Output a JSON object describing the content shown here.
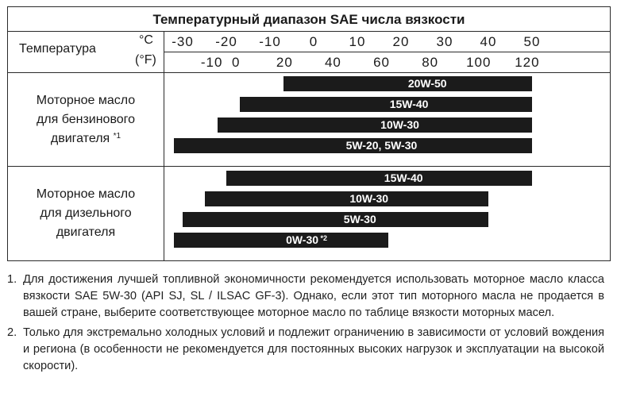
{
  "title": "Температурный диапазон SAE числа вязкости",
  "temperature_label": "Температура",
  "unit_c": "°C",
  "unit_f": "(°F)",
  "ticks_c": [
    "-30",
    "-20",
    "-10",
    "0",
    "10",
    "20",
    "30",
    "40",
    "50"
  ],
  "ticks_f": [
    "-10",
    "0",
    "20",
    "40",
    "60",
    "80",
    "100",
    "120"
  ],
  "groups": [
    {
      "label_lines": [
        "Моторное масло",
        "для бензинового",
        "двигателя"
      ],
      "footnote_mark": "*1",
      "bars": [
        {
          "label": "20W-50",
          "range_c": [
            -7,
            50
          ]
        },
        {
          "label": "15W-40",
          "range_c": [
            -17,
            50
          ]
        },
        {
          "label": "10W-30",
          "range_c": [
            -22,
            50
          ]
        },
        {
          "label": "5W-20, 5W-30",
          "range_c": [
            -32,
            50
          ]
        }
      ]
    },
    {
      "label_lines": [
        "Моторное масло",
        "для дизельного",
        "двигателя"
      ],
      "footnote_mark": "",
      "bars": [
        {
          "label": "15W-40",
          "range_c": [
            -20,
            50
          ]
        },
        {
          "label": "10W-30",
          "range_c": [
            -25,
            40
          ]
        },
        {
          "label": "5W-30",
          "range_c": [
            -30,
            40
          ]
        },
        {
          "label": "0W-30",
          "mark": "*2",
          "range_c": [
            -32,
            17
          ]
        }
      ]
    }
  ],
  "notes": [
    {
      "num": "1.",
      "text": "Для достижения лучшей топливной экономичности рекомендуется использовать моторное масло класса вязкости SAE 5W-30 (API SJ, SL / ILSAC GF-3). Однако, если этот тип моторного масла не продается в вашей стране, выберите соответствующее моторное масло по таблице вязкости моторных масел."
    },
    {
      "num": "2.",
      "text": "Только для экстремально холодных условий и подлежит ограничению в зависимости от условий вождения и региона (в особенности не рекомендуется для постоянных высоких нагрузок и эксплуатации на высокой скорости)."
    }
  ]
}
